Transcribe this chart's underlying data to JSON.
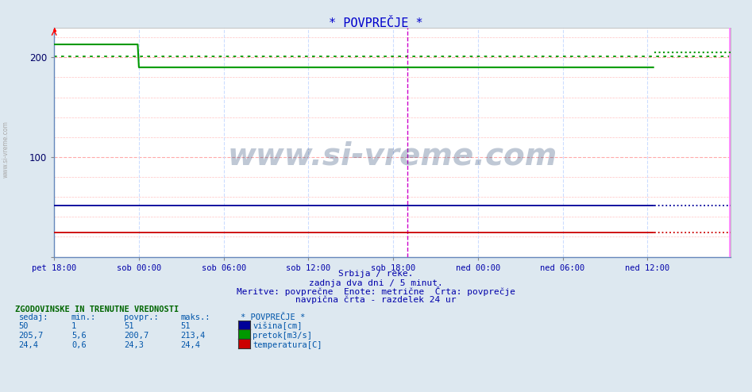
{
  "title": "* POVPREČJE *",
  "title_color": "#0000cc",
  "background_color": "#dde8f0",
  "plot_bg_color": "#ffffff",
  "x_labels": [
    "pet 18:00",
    "sob 00:00",
    "sob 06:00",
    "sob 12:00",
    "sob 18:00",
    "ned 00:00",
    "ned 06:00",
    "ned 12:00"
  ],
  "x_tick_positions": [
    0,
    72,
    144,
    216,
    288,
    360,
    432,
    504
  ],
  "total_points": 576,
  "ylim": [
    0,
    230
  ],
  "yticks": [
    0,
    100,
    200
  ],
  "grid_h_color": "#ffaaaa",
  "grid_v_color": "#ccddff",
  "blue_color": "#000099",
  "green_color": "#009900",
  "red_color": "#cc0000",
  "green_avg_y": 201,
  "magenta_vline_x": 300,
  "magenta_vline_color": "#cc00cc",
  "pink_border_color": "#ff88ff",
  "footer_text1": "Srbija / reke.",
  "footer_text2": "zadnja dva dni / 5 minut.",
  "footer_text3": "Meritve: povprečne  Enote: metrične  Črta: povprečje",
  "footer_text4": "navpična črta - razdelek 24 ur",
  "footer_color": "#0000aa",
  "table_header": "ZGODOVINSKE IN TRENUTNE VREDNOSTI",
  "table_header_color": "#006600",
  "col_headers": [
    "sedaj:",
    "min.:",
    "povpr.:",
    "maks.:",
    "* POVPREČJE *"
  ],
  "row1_vals": [
    "50",
    "1",
    "51",
    "51"
  ],
  "row2_vals": [
    "205,7",
    "5,6",
    "200,7",
    "213,4"
  ],
  "row3_vals": [
    "24,4",
    "0,6",
    "24,3",
    "24,4"
  ],
  "legend_labels": [
    "višina[cm]",
    "pretok[m3/s]",
    "temperatura[C]"
  ],
  "legend_colors": [
    "#000099",
    "#009900",
    "#cc0000"
  ],
  "watermark": "www.si-vreme.com",
  "watermark_color": "#1a3a6a",
  "watermark_alpha": 0.28,
  "side_label": "www.si-vreme.com",
  "blue_y": 51,
  "red_y": 24,
  "dotted_start": 510,
  "green_seg1_end": 72,
  "green_seg1_y": 213,
  "green_seg2_y": 190,
  "green_seg3_start": 510,
  "green_seg3_y": 205
}
